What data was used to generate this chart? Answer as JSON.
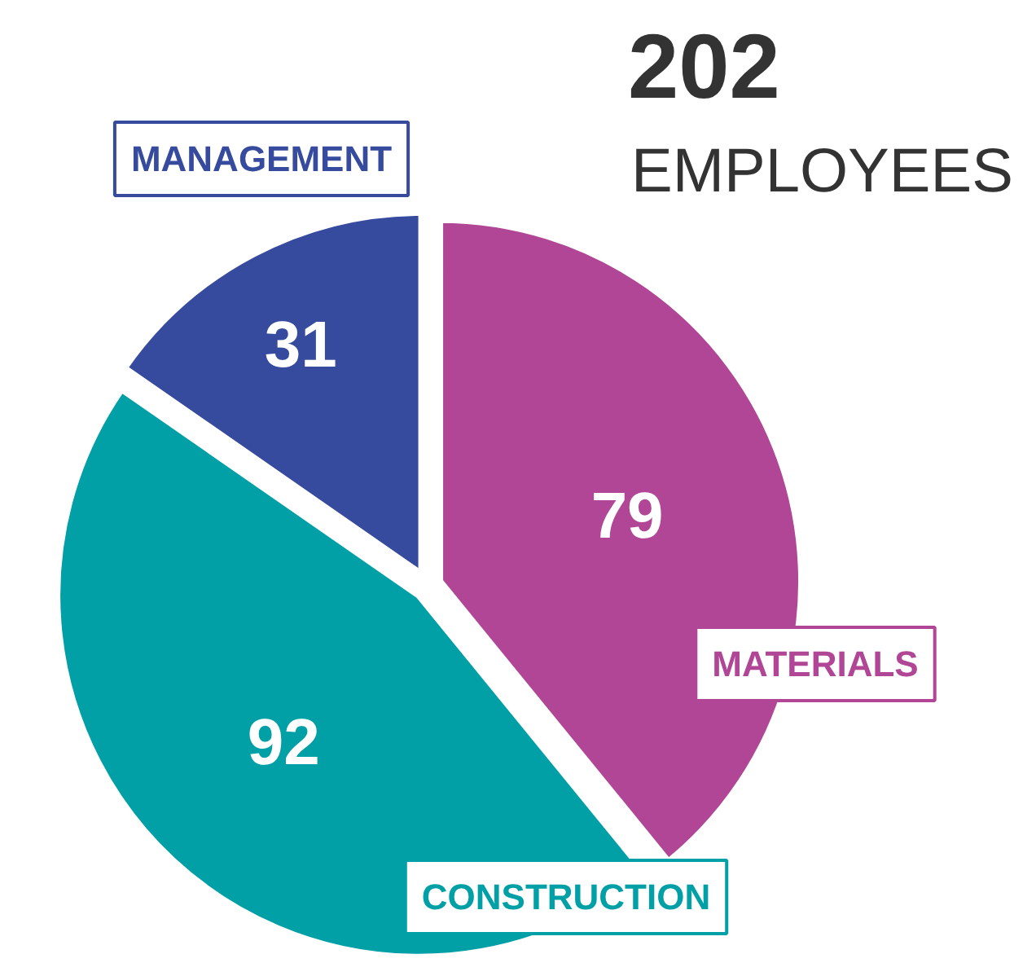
{
  "chart_data": {
    "type": "pie",
    "title": "202",
    "subtitle": "EMPLOYEES",
    "categories": [
      "MATERIALS",
      "CONSTRUCTION",
      "MANAGEMENT"
    ],
    "values": [
      79,
      92,
      31
    ],
    "colors": [
      "#b04695",
      "#00a0a6",
      "#364a9e"
    ],
    "data_labels": true
  }
}
